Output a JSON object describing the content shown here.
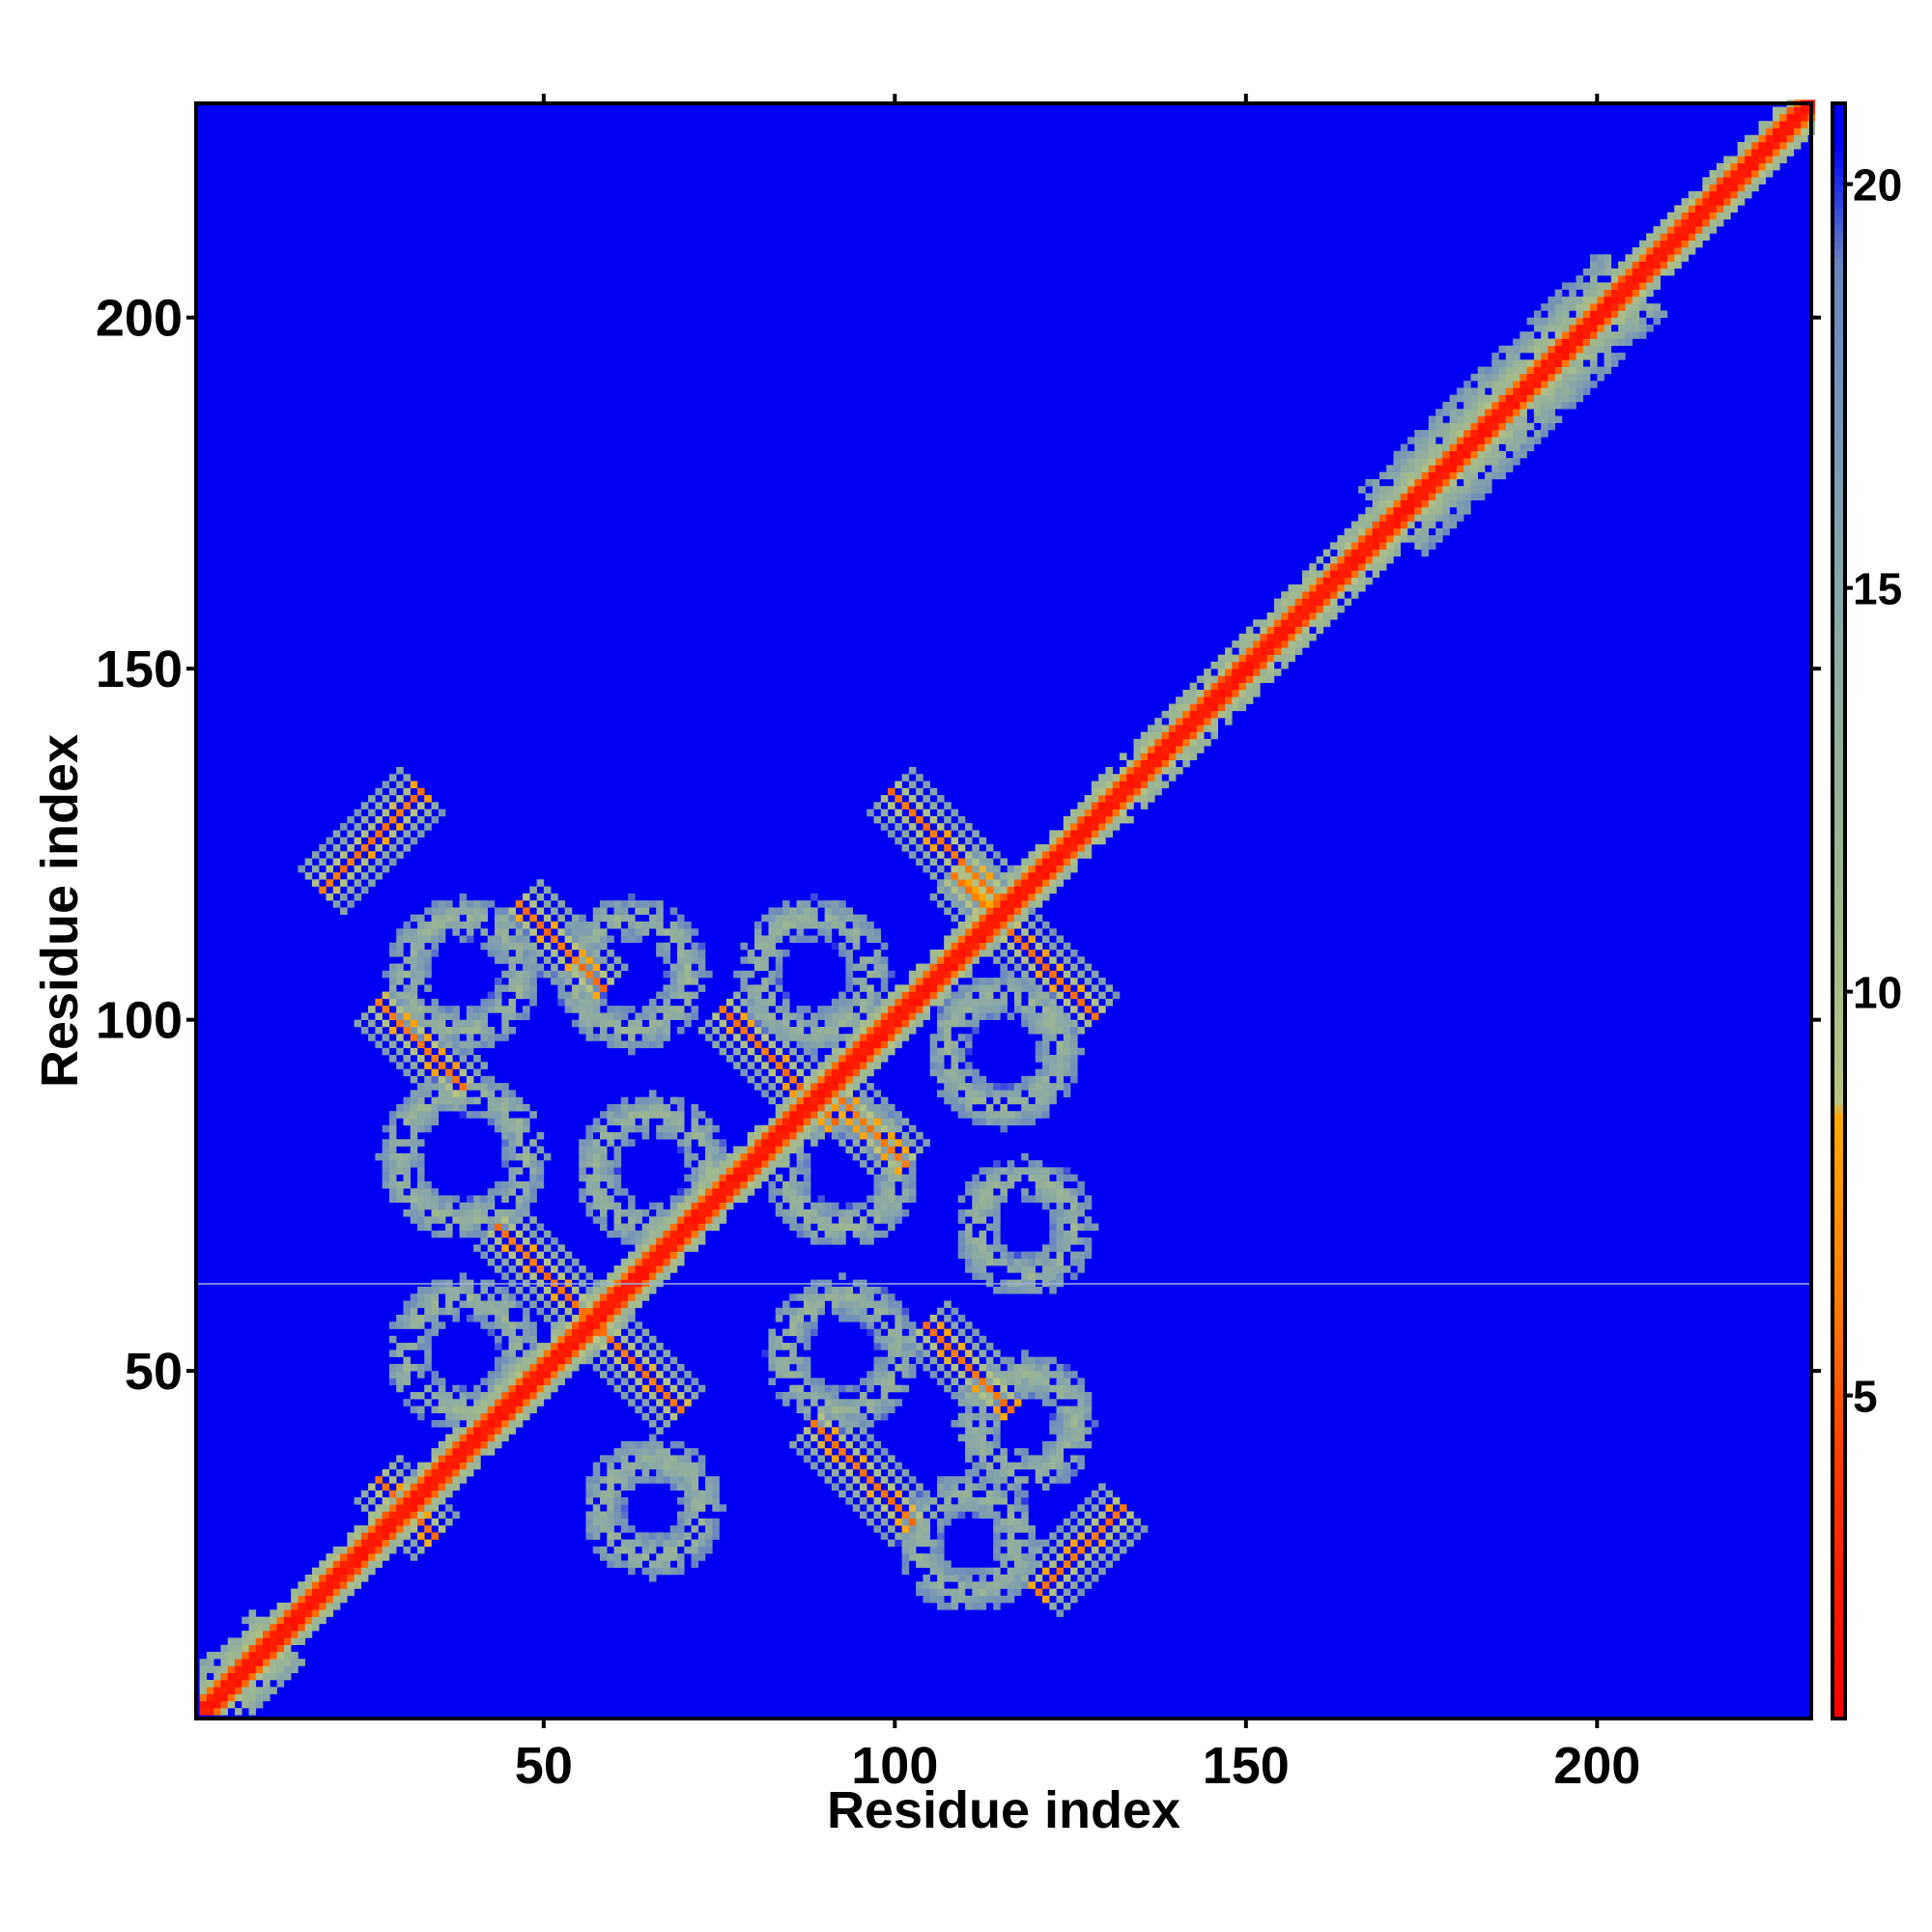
{
  "chart_data": {
    "type": "heatmap",
    "title": "",
    "xlabel": "Residue index",
    "ylabel": "Residue index",
    "xlim": [
      1,
      230
    ],
    "ylim": [
      1,
      230
    ],
    "xticks": [
      50,
      100,
      150,
      200
    ],
    "yticks": [
      50,
      100,
      150,
      200
    ],
    "colorbar": {
      "range": [
        1,
        21
      ],
      "ticks": [
        5,
        10,
        15,
        20
      ],
      "stops": [
        {
          "value": 1,
          "color": "#ff0000"
        },
        {
          "value": 4,
          "color": "#ff3300"
        },
        {
          "value": 6,
          "color": "#ff7700"
        },
        {
          "value": 8.5,
          "color": "#ffaa00"
        },
        {
          "value": 8.6,
          "color": "#b8c480"
        },
        {
          "value": 11,
          "color": "#a0b890"
        },
        {
          "value": 15,
          "color": "#8aa6a8"
        },
        {
          "value": 19,
          "color": "#6a86c0"
        },
        {
          "value": 20.5,
          "color": "#0000ff"
        }
      ]
    },
    "background_value": 21,
    "background_color": "#0000f2",
    "features": {
      "diagonal": {
        "from": 1,
        "to": 230,
        "core_value": 2
      },
      "stripes": [
        {
          "cx": 25,
          "cy": 125,
          "dir": "parallel",
          "half_len": 7
        },
        {
          "cx": 52,
          "cy": 110,
          "dir": "anti",
          "half_len": 6
        },
        {
          "cx": 32,
          "cy": 96,
          "dir": "anti",
          "half_len": 6
        },
        {
          "cx": 83,
          "cy": 93,
          "dir": "anti",
          "half_len": 8
        },
        {
          "cx": 95,
          "cy": 85,
          "dir": "anti",
          "half_len": 6
        },
        {
          "cx": 107,
          "cy": 124,
          "dir": "anti",
          "half_len": 8
        },
        {
          "cx": 118,
          "cy": 110,
          "dir": "anti",
          "half_len": 10
        },
        {
          "cx": 51,
          "cy": 62,
          "dir": "anti",
          "half_len": 8
        },
        {
          "cx": 63,
          "cy": 50,
          "dir": "anti",
          "half_len": 6
        },
        {
          "cx": 110,
          "cy": 50,
          "dir": "anti",
          "half_len": 6
        },
        {
          "cx": 95,
          "cy": 35,
          "dir": "anti",
          "half_len": 7
        },
        {
          "cx": 126,
          "cy": 24,
          "dir": "parallel",
          "half_len": 6
        },
        {
          "cx": 30,
          "cy": 30,
          "dir": "anti",
          "half_len": 4
        }
      ],
      "rings": [
        {
          "cx": 38,
          "cy": 106,
          "r": 8
        },
        {
          "cx": 38,
          "cy": 80,
          "r": 9
        },
        {
          "cx": 38,
          "cy": 52,
          "r": 8
        },
        {
          "cx": 62,
          "cy": 106,
          "r": 8
        },
        {
          "cx": 65,
          "cy": 78,
          "r": 8
        },
        {
          "cx": 88,
          "cy": 106,
          "r": 8
        },
        {
          "cx": 92,
          "cy": 78,
          "r": 8
        },
        {
          "cx": 115,
          "cy": 95,
          "r": 8
        },
        {
          "cx": 118,
          "cy": 70,
          "r": 7
        },
        {
          "cx": 92,
          "cy": 52,
          "r": 8
        },
        {
          "cx": 118,
          "cy": 42,
          "r": 7
        },
        {
          "cx": 65,
          "cy": 30,
          "r": 7
        },
        {
          "cx": 110,
          "cy": 25,
          "r": 7
        }
      ]
    }
  }
}
